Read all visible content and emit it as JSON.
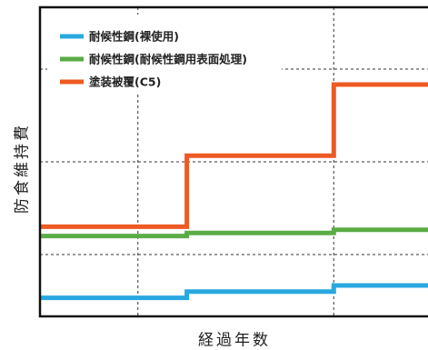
{
  "chart_data": {
    "type": "line",
    "title": "",
    "xlabel": "経過年数",
    "ylabel": "防食維持費",
    "step": true,
    "x": [
      0,
      30,
      30,
      60,
      60,
      80
    ],
    "xlim": [
      0,
      80
    ],
    "ylim": [
      0,
      100
    ],
    "grid": true,
    "legend_position": "top-left",
    "series": [
      {
        "name": "耐候性鋼(裸使用)",
        "color": "#29a8e0",
        "values": [
          6,
          6,
          8,
          8,
          10,
          10
        ]
      },
      {
        "name": "耐候性鋼(耐候性鋼用表面処理)",
        "color": "#5aac46",
        "values": [
          26,
          26,
          27,
          27,
          28,
          28
        ]
      },
      {
        "name": "塗装被覆(C5)",
        "color": "#ee5a24",
        "values": [
          29,
          29,
          52,
          52,
          75,
          75
        ]
      }
    ]
  }
}
